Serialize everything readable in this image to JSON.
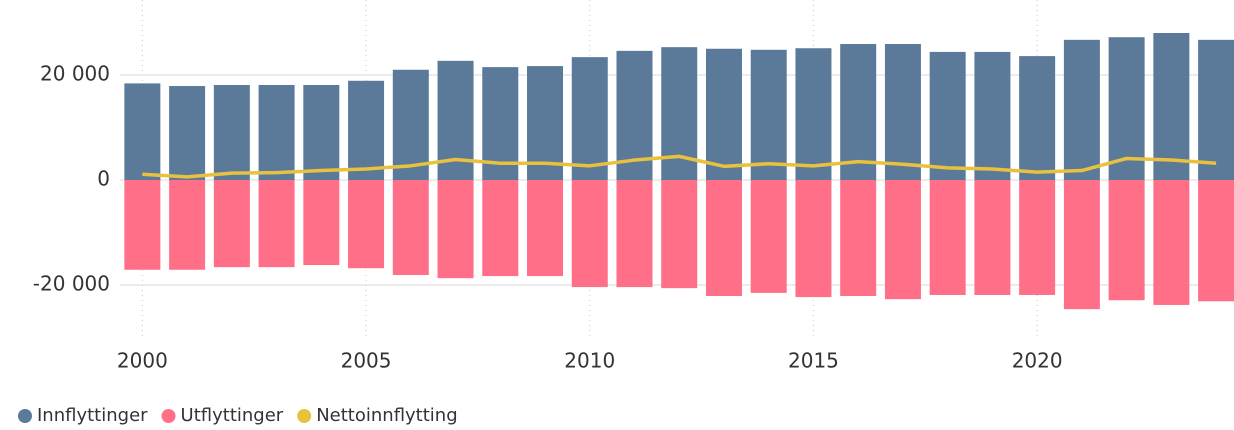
{
  "chart_data": {
    "type": "bar",
    "x": [
      2000,
      2001,
      2002,
      2003,
      2004,
      2005,
      2006,
      2007,
      2008,
      2009,
      2010,
      2011,
      2012,
      2013,
      2014,
      2015,
      2016,
      2017,
      2018,
      2019,
      2020,
      2021,
      2022,
      2023,
      2024
    ],
    "series": [
      {
        "name": "Innflyttinger",
        "color": "#5b7a99",
        "type": "bar",
        "values": [
          18400,
          17900,
          18100,
          18100,
          18100,
          18900,
          21000,
          22700,
          21500,
          21700,
          23400,
          24600,
          25300,
          25000,
          24800,
          25100,
          25900,
          25900,
          24400,
          24400,
          23600,
          26700,
          27200,
          28000,
          26700
        ]
      },
      {
        "name": "Utflyttinger",
        "color": "#ff6f87",
        "type": "bar",
        "values": [
          -17100,
          -17100,
          -16600,
          -16600,
          -16200,
          -16800,
          -18100,
          -18700,
          -18300,
          -18300,
          -20400,
          -20400,
          -20600,
          -22100,
          -21500,
          -22300,
          -22100,
          -22700,
          -21900,
          -21900,
          -21900,
          -24600,
          -22900,
          -23800,
          -23100
        ]
      },
      {
        "name": "Nettoinnflytting",
        "color": "#e8c23e",
        "type": "line",
        "values": [
          1100,
          600,
          1300,
          1400,
          1800,
          2100,
          2700,
          3900,
          3200,
          3200,
          2700,
          3800,
          4500,
          2600,
          3100,
          2700,
          3500,
          3000,
          2300,
          2100,
          1500,
          1800,
          4100,
          3800,
          3200
        ]
      }
    ],
    "xlim": [
      1999.5,
      2024.4
    ],
    "xticks": [
      2000,
      2005,
      2010,
      2015,
      2020
    ],
    "ylim": [
      -30000,
      30000
    ],
    "yticks": [
      {
        "value": -20000,
        "label": "-20 000"
      },
      0,
      {
        "value": 20000,
        "label": "20 000"
      }
    ],
    "grid": true,
    "legend": "bottom"
  }
}
